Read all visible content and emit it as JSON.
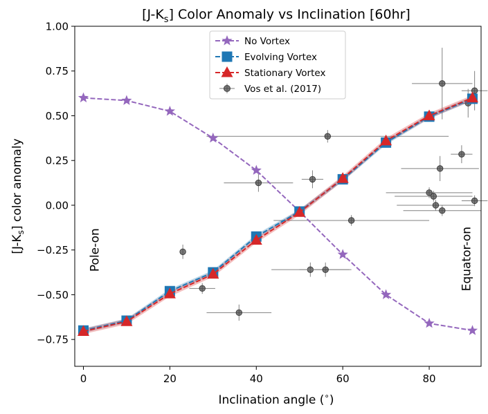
{
  "chart_data": {
    "type": "line",
    "title": "[J-K$_s$] Color Anomaly vs Inclination [60hr]",
    "title_parts": {
      "pre": "[J-K",
      "sub": "s",
      "post": "] Color Anomaly vs Inclination [60hr]"
    },
    "xlabel": "Inclination angle ($^\\circ$)",
    "xlabel_parts": {
      "pre": "Inclination angle (",
      "sup": "∘",
      "post": ")"
    },
    "ylabel": "[J-K$_s$] color anomaly",
    "ylabel_parts": {
      "pre": "[J-K",
      "sub": "s",
      "post": "] color anomaly"
    },
    "xlim": [
      -2,
      92
    ],
    "ylim": [
      -0.9,
      1.0
    ],
    "x_ticks": [
      0,
      20,
      40,
      60,
      80
    ],
    "x_tick_labels": [
      "0",
      "20",
      "40",
      "60",
      "80"
    ],
    "y_ticks": [
      1.0,
      0.75,
      0.5,
      0.25,
      0.0,
      -0.25,
      -0.5,
      -0.75
    ],
    "y_tick_labels": [
      "1.00",
      "0.75",
      "0.50",
      "0.25",
      "0.00",
      "−0.25",
      "−0.50",
      "−0.75"
    ],
    "grid": false,
    "legend_position": "top-center",
    "x": [
      0,
      10,
      20,
      30,
      40,
      50,
      60,
      70,
      80,
      90
    ],
    "series": [
      {
        "name": "No Vortex",
        "marker": "star",
        "color": "#9467bd",
        "values": [
          0.6,
          0.585,
          0.525,
          0.375,
          0.195,
          -0.035,
          -0.275,
          -0.5,
          -0.66,
          -0.7
        ]
      },
      {
        "name": "Evolving Vortex",
        "marker": "square",
        "color": "#1f77b4",
        "values": [
          -0.7,
          -0.645,
          -0.48,
          -0.375,
          -0.175,
          -0.035,
          0.145,
          0.35,
          0.495,
          0.595
        ],
        "band": 0.012
      },
      {
        "name": "Stationary Vortex",
        "marker": "triangle",
        "color": "#d62728",
        "values": [
          -0.705,
          -0.65,
          -0.495,
          -0.385,
          -0.195,
          -0.04,
          0.15,
          0.36,
          0.5,
          0.6
        ],
        "band": 0.015
      }
    ],
    "observations": {
      "name": "Vos et al. (2017)",
      "color": "#404040",
      "points": [
        {
          "x": 23,
          "y": -0.26,
          "xerr": 0,
          "yerr": 0.04
        },
        {
          "x": 27.5,
          "y": -0.465,
          "xerr": 3,
          "yerr": 0.03
        },
        {
          "x": 36,
          "y": -0.6,
          "xerr": 7.5,
          "yerr": 0.045
        },
        {
          "x": 40.5,
          "y": 0.125,
          "xerr": 8,
          "yerr": 0.05
        },
        {
          "x": 53,
          "y": 0.145,
          "xerr": 2.5,
          "yerr": 0.05
        },
        {
          "x": 52.5,
          "y": -0.36,
          "xerr": 9,
          "yerr": 0.04
        },
        {
          "x": 56,
          "y": -0.36,
          "xerr": 6,
          "yerr": 0.04
        },
        {
          "x": 56.5,
          "y": 0.385,
          "xerr": 28,
          "yerr": 0.035
        },
        {
          "x": 62,
          "y": -0.085,
          "xerr": 18,
          "yerr": 0.03
        },
        {
          "x": 80,
          "y": 0.07,
          "xerr": 10,
          "yerr": 0.03
        },
        {
          "x": 81,
          "y": 0.05,
          "xerr": 9,
          "yerr": 0.03
        },
        {
          "x": 81.5,
          "y": 0.0,
          "xerr": 9,
          "yerr": 0.03
        },
        {
          "x": 82.5,
          "y": 0.205,
          "xerr": 9,
          "yerr": 0.07
        },
        {
          "x": 83,
          "y": -0.03,
          "xerr": 9,
          "yerr": 0.03
        },
        {
          "x": 83,
          "y": 0.68,
          "xerr": 7,
          "yerr": 0.2
        },
        {
          "x": 87.5,
          "y": 0.285,
          "xerr": 2.5,
          "yerr": 0.05
        },
        {
          "x": 89,
          "y": 0.57,
          "xerr": 2,
          "yerr": 0.08
        },
        {
          "x": 90.5,
          "y": 0.64,
          "xerr": 3,
          "yerr": 0.11
        },
        {
          "x": 90.5,
          "y": 0.025,
          "xerr": 3,
          "yerr": 0.03
        }
      ]
    },
    "annotations": [
      {
        "text": "Pole-on",
        "x": 3.5,
        "y": -0.25,
        "rotation": 90
      },
      {
        "text": "Equator-on",
        "x": 89.5,
        "y": -0.3,
        "rotation": 90
      }
    ]
  }
}
